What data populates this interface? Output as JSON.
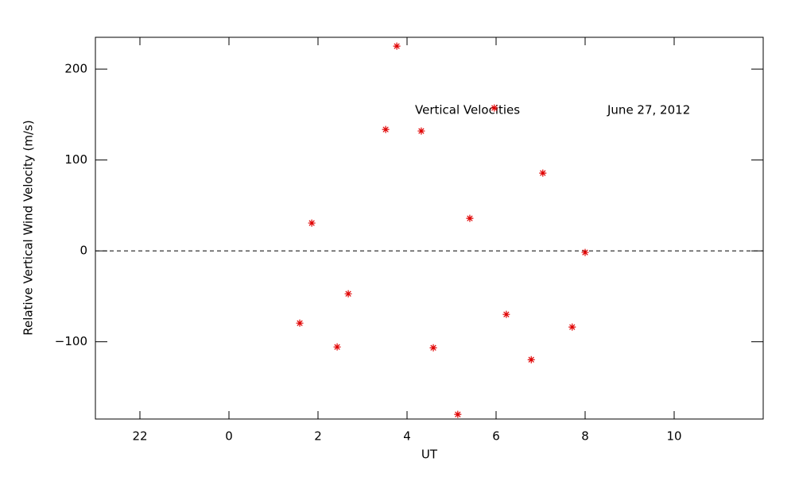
{
  "chart_data": {
    "type": "scatter",
    "xlabel": "UT",
    "ylabel": "Relative Vertical Wind Velocity (m/s)",
    "annotations": [
      "Vertical Velocities",
      "June 27, 2012"
    ],
    "color": "#e00000",
    "hline": 0,
    "xlim": [
      -3,
      12
    ],
    "ylim": [
      -185,
      235
    ],
    "xticks": [
      {
        "value": -2,
        "label": "22"
      },
      0,
      2,
      4,
      6,
      8,
      10
    ],
    "yticks": [
      {
        "value": -100,
        "label": "−100"
      },
      0,
      100,
      200
    ],
    "x": [
      1.59,
      1.86,
      2.43,
      2.68,
      3.52,
      3.77,
      4.32,
      4.59,
      5.14,
      5.41,
      5.96,
      6.23,
      6.79,
      7.05,
      7.71,
      8.0
    ],
    "y": [
      -79.5,
      30.6,
      -105.7,
      -47.2,
      133.6,
      225.3,
      131.9,
      -106.6,
      -179.9,
      35.8,
      157.2,
      -69.9,
      -119.7,
      85.6,
      -83.8,
      -1.7
    ]
  }
}
